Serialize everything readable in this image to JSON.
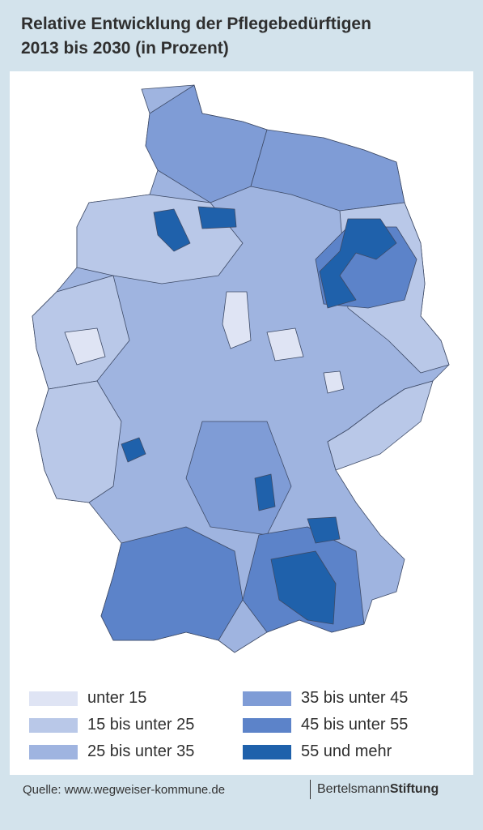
{
  "title": [
    "Relative Entwicklung der Pflegebedürftigen",
    "2013 bis 2030 (in Prozent)"
  ],
  "legend": [
    {
      "label": "unter 15",
      "color": "#dfe4f4"
    },
    {
      "label": "15 bis unter 25",
      "color": "#b9c8e8"
    },
    {
      "label": "25 bis unter 35",
      "color": "#9fb4e0"
    },
    {
      "label": "35 bis unter 45",
      "color": "#7f9cd6"
    },
    {
      "label": "45 bis unter 55",
      "color": "#5c83c9"
    },
    {
      "label": "55 und mehr",
      "color": "#1f61ab"
    }
  ],
  "source": "Quelle: www.wegweiser-kommune.de",
  "brand": {
    "name": "Bertelsmann",
    "emphasis": "Stiftung"
  }
}
